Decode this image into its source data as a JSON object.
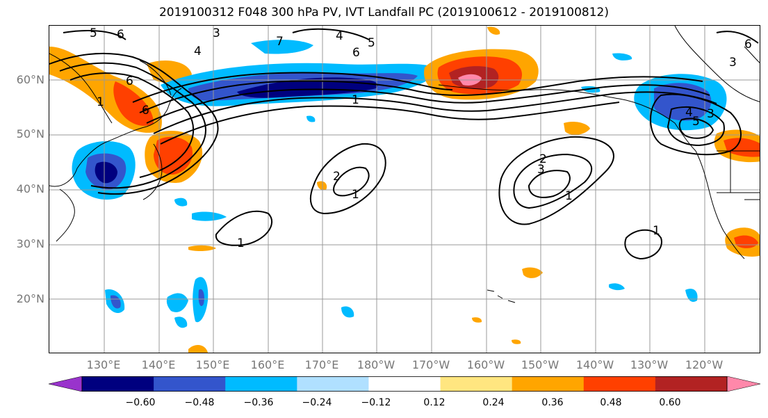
{
  "title": "2019100312 F048 300 hPa PV, IVT Landfall PC (2019100612 - 2019100812)",
  "lat_labels": [
    "60°N",
    "50°N",
    "40°N",
    "30°N",
    "20°N"
  ],
  "lon_labels": [
    "130°E",
    "140°E",
    "150°E",
    "160°E",
    "170°E",
    "180°W",
    "170°W",
    "160°W",
    "150°W",
    "140°W",
    "130°W",
    "120°W"
  ],
  "colorbar": {
    "ticks": [
      "−0.60",
      "−0.48",
      "−0.36",
      "−0.24",
      "−0.12",
      "0.12",
      "0.24",
      "0.36",
      "0.48",
      "0.60"
    ],
    "colors": [
      "#9933cc",
      "#00007f",
      "#3355cc",
      "#00bbff",
      "#b0e0ff",
      "#ffffff",
      "#ffe680",
      "#ffa500",
      "#ff4000",
      "#b22222",
      "#ff88aa"
    ]
  },
  "contour_labels": [
    "5",
    "6",
    "3",
    "4",
    "7",
    "4",
    "6",
    "5",
    "1",
    "6",
    "6",
    "1",
    "2",
    "1",
    "1",
    "2",
    "3",
    "1",
    "1",
    "4",
    "5",
    "3",
    "3",
    "6"
  ],
  "colors": {
    "contour": "#000000",
    "grid": "#999999",
    "coast": "#000000"
  }
}
